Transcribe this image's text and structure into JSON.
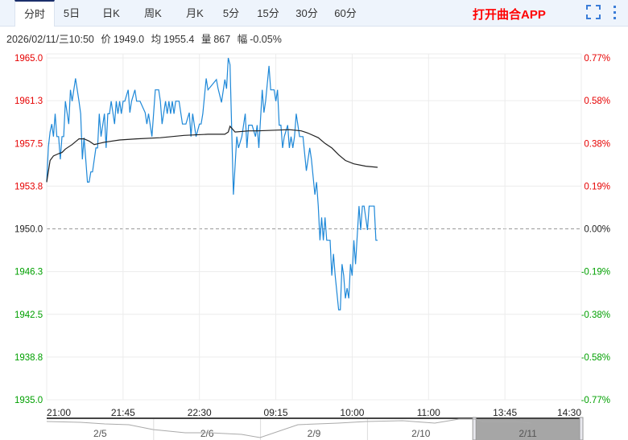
{
  "tabs": [
    {
      "label": "分时",
      "active": true
    },
    {
      "label": "5日"
    },
    {
      "label": "日K"
    },
    {
      "label": "周K"
    },
    {
      "label": "月K"
    },
    {
      "label": "5分"
    },
    {
      "label": "15分"
    },
    {
      "label": "30分"
    },
    {
      "label": "60分"
    }
  ],
  "open_app_label": "打开曲合APP",
  "icons": {
    "fullscreen": "fullscreen-icon",
    "more": "more-vertical-icon"
  },
  "info": {
    "datetime": "2026/02/11/三10:50",
    "price_label": "价",
    "price": "1949.0",
    "avg_label": "均",
    "avg": "1955.4",
    "vol_label": "量",
    "vol": "867",
    "chg_label": "幅",
    "chg": "-0.05%"
  },
  "colors": {
    "up": "#e60000",
    "down": "#00a000",
    "price_line": "#1e88d8",
    "avg_line": "#222222",
    "grid": "#ececec"
  },
  "chart_data": {
    "type": "line",
    "prev_close": 1950.0,
    "ylim": [
      1935.0,
      1965.0
    ],
    "y_ticks": [
      "1965.0",
      "1961.3",
      "1957.5",
      "1953.8",
      "1950.0",
      "1946.3",
      "1942.5",
      "1938.8",
      "1935.0"
    ],
    "pct_ticks": [
      "0.77%",
      "0.58%",
      "0.38%",
      "0.19%",
      "0.00%",
      "-0.19%",
      "-0.38%",
      "-0.58%",
      "-0.77%"
    ],
    "x_ticks": [
      "21:00",
      "21:45",
      "22:30",
      "09:15",
      "10:00",
      "11:00",
      "13:45",
      "14:30"
    ],
    "series": [
      {
        "key": "price",
        "points": [
          [
            "21:00",
            1954.1
          ],
          [
            "21:01",
            1957.2
          ],
          [
            "21:02",
            1958.5
          ],
          [
            "21:03",
            1959.2
          ],
          [
            "21:04",
            1958.1
          ],
          [
            "21:05",
            1960.1
          ],
          [
            "21:06",
            1958.1
          ],
          [
            "21:07",
            1958.1
          ],
          [
            "21:08",
            1956.1
          ],
          [
            "21:09",
            1958.1
          ],
          [
            "21:10",
            1958.1
          ],
          [
            "21:11",
            1961.2
          ],
          [
            "21:13",
            1959.2
          ],
          [
            "21:14",
            1962.2
          ],
          [
            "21:15",
            1961.2
          ],
          [
            "21:17",
            1963.2
          ],
          [
            "21:19",
            1961.2
          ],
          [
            "21:20",
            1960.1
          ],
          [
            "21:21",
            1956.1
          ],
          [
            "21:22",
            1958.0
          ],
          [
            "21:23",
            1956.1
          ],
          [
            "21:24",
            1954.1
          ],
          [
            "21:25",
            1954.1
          ],
          [
            "21:26",
            1955.0
          ],
          [
            "21:27",
            1955.0
          ],
          [
            "21:29",
            1957.1
          ],
          [
            "21:30",
            1957.1
          ],
          [
            "21:31",
            1960.1
          ],
          [
            "21:32",
            1958.1
          ],
          [
            "21:34",
            1960.1
          ],
          [
            "21:35",
            1957.1
          ],
          [
            "21:36",
            1960.1
          ],
          [
            "21:37",
            1960.1
          ],
          [
            "21:38",
            1961.2
          ],
          [
            "21:40",
            1959.2
          ],
          [
            "21:41",
            1961.2
          ],
          [
            "21:42",
            1960.1
          ],
          [
            "21:43",
            1961.2
          ],
          [
            "21:44",
            1960.1
          ],
          [
            "21:45",
            1961.2
          ],
          [
            "21:46",
            1961.2
          ],
          [
            "21:48",
            1962.2
          ],
          [
            "21:49",
            1960.2
          ],
          [
            "21:50",
            1961.2
          ],
          [
            "21:52",
            1962.2
          ],
          [
            "21:53",
            1961.2
          ],
          [
            "21:55",
            1961.2
          ],
          [
            "21:58",
            1960.2
          ],
          [
            "21:59",
            1959.2
          ],
          [
            "22:00",
            1960.1
          ],
          [
            "22:02",
            1958.1
          ],
          [
            "22:04",
            1962.2
          ],
          [
            "22:06",
            1962.2
          ],
          [
            "22:07",
            1961.2
          ],
          [
            "22:08",
            1959.2
          ],
          [
            "22:10",
            1961.2
          ],
          [
            "22:11",
            1960.1
          ],
          [
            "22:12",
            1961.2
          ],
          [
            "22:13",
            1960.1
          ],
          [
            "22:14",
            1961.2
          ],
          [
            "22:15",
            1960.1
          ],
          [
            "22:16",
            1961.2
          ],
          [
            "22:18",
            1961.2
          ],
          [
            "22:20",
            1959.2
          ],
          [
            "22:22",
            1959.2
          ],
          [
            "22:24",
            1960.2
          ],
          [
            "22:25",
            1958.1
          ],
          [
            "22:26",
            1960.1
          ],
          [
            "22:28",
            1958.1
          ],
          [
            "22:30",
            1959.2
          ],
          [
            "22:31",
            1959.2
          ],
          [
            "22:32",
            1960.1
          ],
          [
            "22:34",
            1963.2
          ],
          [
            "22:35",
            1962.2
          ],
          [
            "22:40",
            1963.1
          ],
          [
            "22:41",
            1962.3
          ],
          [
            "22:43",
            1961.1
          ],
          [
            "22:45",
            1963.1
          ],
          [
            "22:46",
            1962.3
          ],
          [
            "22:47",
            1965.0
          ],
          [
            "22:48",
            1964.4
          ],
          [
            "22:50",
            1953.0
          ],
          [
            "22:52",
            1958.1
          ],
          [
            "22:53",
            1957.1
          ],
          [
            "22:55",
            1958.1
          ],
          [
            "22:57",
            1960.1
          ],
          [
            "22:58",
            1957.1
          ],
          [
            "22:59",
            1959.1
          ],
          [
            "09:01",
            1959.1
          ],
          [
            "09:03",
            1958.1
          ],
          [
            "09:04",
            1959.1
          ],
          [
            "09:05",
            1957.1
          ],
          [
            "09:07",
            1962.2
          ],
          [
            "09:08",
            1960.2
          ],
          [
            "09:09",
            1961.2
          ],
          [
            "09:11",
            1964.3
          ],
          [
            "09:12",
            1962.2
          ],
          [
            "09:14",
            1962.2
          ],
          [
            "09:15",
            1961.2
          ],
          [
            "09:16",
            1962.2
          ],
          [
            "09:17",
            1959.1
          ],
          [
            "09:18",
            1959.1
          ],
          [
            "09:19",
            1957.1
          ],
          [
            "09:20",
            1958.1
          ],
          [
            "09:22",
            1959.1
          ],
          [
            "09:23",
            1957.1
          ],
          [
            "09:24",
            1958.1
          ],
          [
            "09:25",
            1957.1
          ],
          [
            "09:26",
            1958.1
          ],
          [
            "09:27",
            1960.1
          ],
          [
            "09:29",
            1958.1
          ],
          [
            "09:31",
            1958.1
          ],
          [
            "09:33",
            1955.1
          ],
          [
            "09:35",
            1957.1
          ],
          [
            "09:36",
            1956.1
          ],
          [
            "09:38",
            1953.0
          ],
          [
            "09:39",
            1954.1
          ],
          [
            "09:40",
            1952.0
          ],
          [
            "09:41",
            1949.0
          ],
          [
            "09:42",
            1951.0
          ],
          [
            "09:43",
            1949.0
          ],
          [
            "09:44",
            1951.0
          ],
          [
            "09:45",
            1949.0
          ],
          [
            "09:47",
            1949.0
          ],
          [
            "09:48",
            1945.9
          ],
          [
            "09:49",
            1947.8
          ],
          [
            "09:50",
            1945.9
          ],
          [
            "09:52",
            1942.9
          ],
          [
            "09:53",
            1942.9
          ],
          [
            "09:54",
            1946.9
          ],
          [
            "09:55",
            1945.9
          ],
          [
            "09:56",
            1943.9
          ],
          [
            "09:57",
            1944.8
          ],
          [
            "09:58",
            1943.9
          ],
          [
            "09:59",
            1946.9
          ],
          [
            "10:00",
            1945.9
          ],
          [
            "10:01",
            1949.0
          ],
          [
            "10:02",
            1946.9
          ],
          [
            "10:04",
            1952.0
          ],
          [
            "10:05",
            1949.9
          ],
          [
            "10:06",
            1952.0
          ],
          [
            "10:07",
            1952.0
          ],
          [
            "10:09",
            1949.9
          ],
          [
            "10:10",
            1952.0
          ],
          [
            "10:13",
            1952.0
          ],
          [
            "10:14",
            1949.0
          ],
          [
            "10:15",
            1949.0
          ]
        ]
      },
      {
        "key": "avg",
        "points": [
          [
            "21:00",
            1954.1
          ],
          [
            "21:02",
            1956.0
          ],
          [
            "21:04",
            1956.4
          ],
          [
            "21:07",
            1956.6
          ],
          [
            "21:09",
            1956.7
          ],
          [
            "21:11",
            1957.0
          ],
          [
            "21:15",
            1957.4
          ],
          [
            "21:19",
            1957.9
          ],
          [
            "21:22",
            1957.9
          ],
          [
            "21:25",
            1957.7
          ],
          [
            "21:28",
            1957.4
          ],
          [
            "21:34",
            1957.6
          ],
          [
            "21:43",
            1957.8
          ],
          [
            "21:53",
            1957.9
          ],
          [
            "22:07",
            1958.0
          ],
          [
            "22:21",
            1958.2
          ],
          [
            "22:35",
            1958.3
          ],
          [
            "22:45",
            1958.3
          ],
          [
            "22:47",
            1958.5
          ],
          [
            "22:48",
            1959.0
          ],
          [
            "22:51",
            1958.5
          ],
          [
            "22:59",
            1958.6
          ],
          [
            "09:04",
            1958.6
          ],
          [
            "09:23",
            1958.7
          ],
          [
            "09:30",
            1958.6
          ],
          [
            "09:34",
            1958.4
          ],
          [
            "09:40",
            1958.0
          ],
          [
            "09:44",
            1957.5
          ],
          [
            "09:48",
            1957.1
          ],
          [
            "09:52",
            1956.5
          ],
          [
            "09:56",
            1956.0
          ],
          [
            "10:01",
            1955.7
          ],
          [
            "10:08",
            1955.5
          ],
          [
            "10:15",
            1955.4
          ]
        ]
      }
    ]
  },
  "navigator": {
    "dates": [
      "2/5",
      "2/6",
      "2/9",
      "2/10",
      "2/11"
    ],
    "selected": "2/11"
  }
}
